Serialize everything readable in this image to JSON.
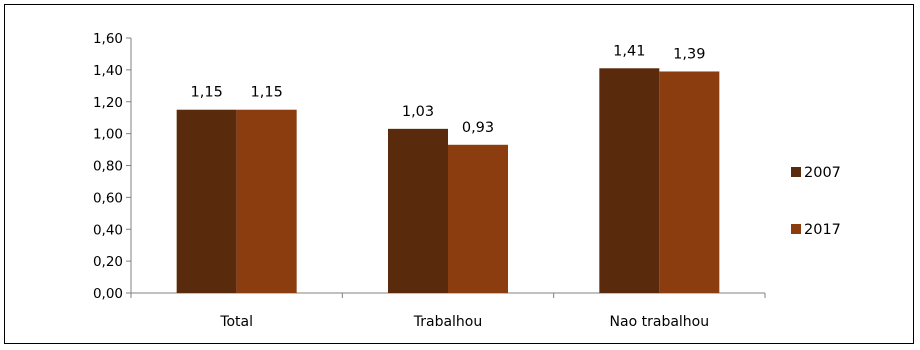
{
  "chart_data": {
    "type": "bar",
    "categories": [
      "Total",
      "Trabalhou",
      "Nao trabalhou"
    ],
    "series": [
      {
        "name": "2007",
        "color": "#5a2a0c",
        "values": [
          1.15,
          1.03,
          1.41
        ],
        "labels": [
          "1,15",
          "1,03",
          "1,41"
        ]
      },
      {
        "name": "2017",
        "color": "#8b3d0f",
        "values": [
          1.15,
          0.93,
          1.39
        ],
        "labels": [
          "1,15",
          "0,93",
          "1,39"
        ]
      }
    ],
    "ylim": [
      0,
      1.6
    ],
    "yticks": [
      0,
      0.2,
      0.4,
      0.6,
      0.8,
      1.0,
      1.2,
      1.4,
      1.6
    ],
    "ytick_labels": [
      "0,00",
      "0,20",
      "0,40",
      "0,60",
      "0,80",
      "1,00",
      "1,20",
      "1,40",
      "1,60"
    ],
    "grid": false,
    "legend_position": "right",
    "title": "",
    "xlabel": "",
    "ylabel": ""
  }
}
